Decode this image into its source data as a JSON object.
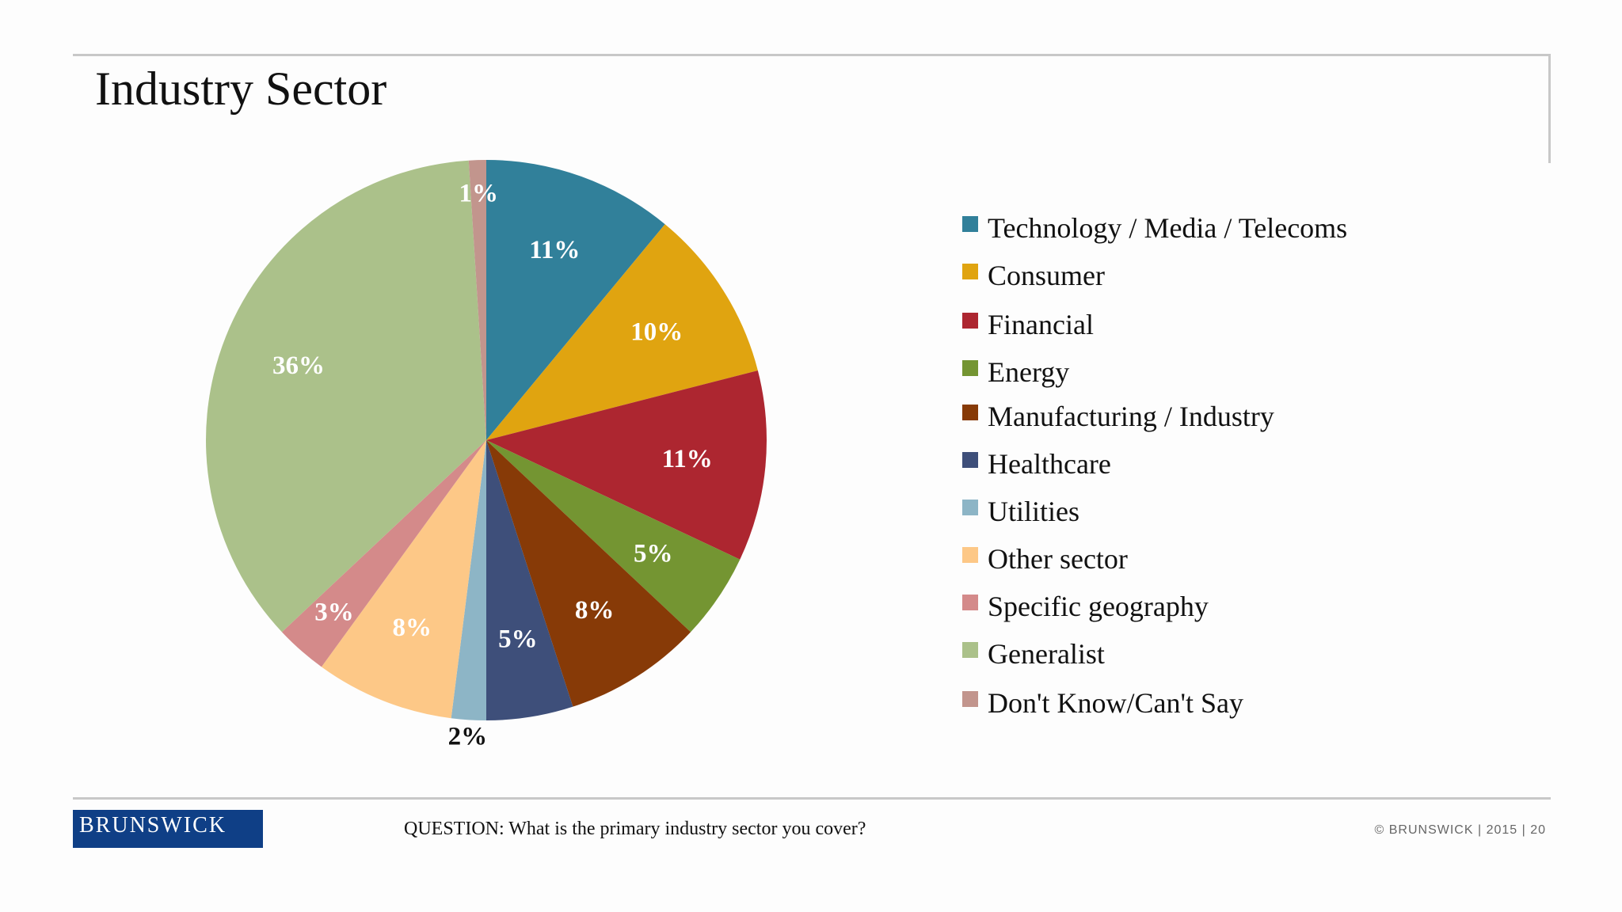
{
  "slide": {
    "title": "Industry Sector",
    "question": "QUESTION: What is the primary industry sector you cover?",
    "logo_text": "BRUNSWICK",
    "copyright": "© BRUNSWICK  |  2015  |  20"
  },
  "chart_data": {
    "type": "pie",
    "title": "Industry Sector",
    "legend_position": "right",
    "slices": [
      {
        "name": "Technology / Media / Telecoms",
        "value": 11,
        "label": "11%",
        "color": "#31809a",
        "label_color": "#ffffff"
      },
      {
        "name": "Consumer",
        "value": 10,
        "label": "10%",
        "color": "#e0a410",
        "label_color": "#ffffff"
      },
      {
        "name": "Financial",
        "value": 11,
        "label": "11%",
        "color": "#ad2630",
        "label_color": "#ffffff"
      },
      {
        "name": "Energy",
        "value": 5,
        "label": "5%",
        "color": "#749532",
        "label_color": "#ffffff"
      },
      {
        "name": "Manufacturing / Industry",
        "value": 8,
        "label": "8%",
        "color": "#873a07",
        "label_color": "#ffffff"
      },
      {
        "name": "Healthcare",
        "value": 5,
        "label": "5%",
        "color": "#3e4f7a",
        "label_color": "#ffffff"
      },
      {
        "name": "Utilities",
        "value": 2,
        "label": "2%",
        "color": "#8db5c6",
        "label_color": "#111111"
      },
      {
        "name": "Other sector",
        "value": 8,
        "label": "8%",
        "color": "#fdc887",
        "label_color": "#ffffff"
      },
      {
        "name": "Specific geography",
        "value": 3,
        "label": "3%",
        "color": "#d48a8a",
        "label_color": "#ffffff"
      },
      {
        "name": "Generalist",
        "value": 36,
        "label": "36%",
        "color": "#abc18a",
        "label_color": "#ffffff"
      },
      {
        "name": "Don't Know/Can't Say",
        "value": 1,
        "label": "1%",
        "color": "#c2958d",
        "label_color": "#ffffff"
      }
    ]
  }
}
